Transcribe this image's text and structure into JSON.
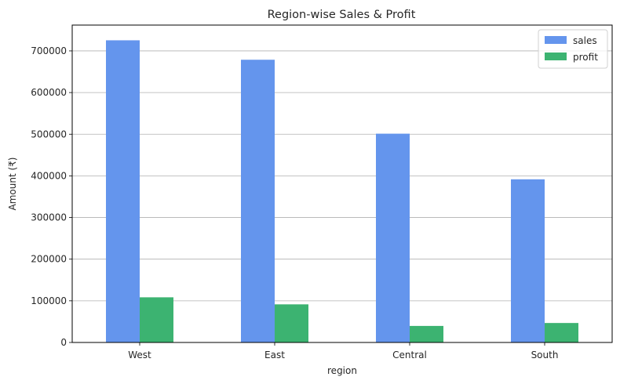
{
  "chart_data": {
    "type": "bar",
    "title": "Region-wise Sales & Profit",
    "xlabel": "region",
    "ylabel": "Amount (₹)",
    "categories": [
      "West",
      "East",
      "Central",
      "South"
    ],
    "series": [
      {
        "name": "sales",
        "values": [
          725458,
          678781,
          501240,
          391722
        ],
        "color": "#6495ED"
      },
      {
        "name": "profit",
        "values": [
          108418,
          91523,
          39706,
          46749
        ],
        "color": "#3CB371"
      }
    ],
    "ylim": [
      0,
      762000
    ],
    "yticks": [
      0,
      100000,
      200000,
      300000,
      400000,
      500000,
      600000,
      700000
    ],
    "grid": "y",
    "legend_position": "top-right"
  }
}
